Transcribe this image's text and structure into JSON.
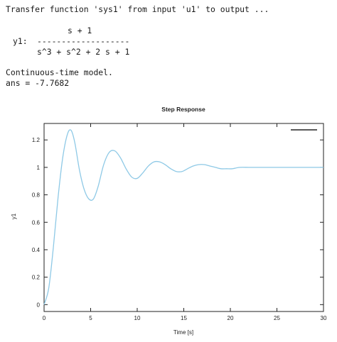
{
  "console": {
    "header": "Transfer function 'sys1' from input 'u1' to output ...",
    "numerator": "s + 1",
    "output_label": "y1:",
    "divider": "-------------------",
    "denominator": "s^3 + s^2 + 2 s + 1",
    "model_type": "Continuous-time model.",
    "answer": "ans = -7.7682"
  },
  "chart_data": {
    "type": "line",
    "title": "Step Response",
    "xlabel": "Time [s]",
    "ylabel": "y1",
    "xlim": [
      0,
      30
    ],
    "ylim": [
      -0.05,
      1.32
    ],
    "x_ticks": [
      0,
      5,
      10,
      15,
      20,
      25,
      30
    ],
    "y_ticks": [
      0,
      0.2,
      0.4,
      0.6,
      0.8,
      1,
      1.2
    ],
    "x_tick_labels": [
      "0",
      "5",
      "10",
      "15",
      "20",
      "25",
      "30"
    ],
    "y_tick_labels": [
      "0",
      "0.2",
      "0.4",
      "0.6",
      "0.8",
      "1",
      "1.2"
    ],
    "grid": false,
    "legend_placement": "top-right",
    "line_color": "#8ec9e6",
    "series": [
      {
        "x": [
          0,
          0.5,
          1,
          1.5,
          2,
          2.5,
          2.9,
          3.3,
          3.8,
          4.3,
          4.8,
          5.3,
          5.8,
          6.4,
          7,
          7.6,
          8.2,
          8.8,
          9.4,
          10,
          10.6,
          11.2,
          11.8,
          12.4,
          13,
          13.6,
          14.2,
          14.8,
          15.4,
          16,
          16.6,
          17.2,
          17.8,
          18.4,
          19,
          19.6,
          20.2,
          21,
          22,
          23,
          24,
          25,
          26,
          27,
          28,
          29,
          30
        ],
        "y": [
          0,
          0.12,
          0.42,
          0.78,
          1.07,
          1.24,
          1.27,
          1.18,
          0.98,
          0.84,
          0.77,
          0.77,
          0.86,
          1.02,
          1.11,
          1.12,
          1.07,
          0.99,
          0.93,
          0.92,
          0.96,
          1.01,
          1.04,
          1.04,
          1.02,
          0.99,
          0.97,
          0.97,
          0.99,
          1.01,
          1.02,
          1.02,
          1.01,
          1.0,
          0.99,
          0.99,
          0.99,
          1.0,
          1.0,
          1.0,
          1.0,
          1.0,
          1.0,
          1.0,
          1.0,
          1.0,
          1.0
        ]
      }
    ]
  }
}
